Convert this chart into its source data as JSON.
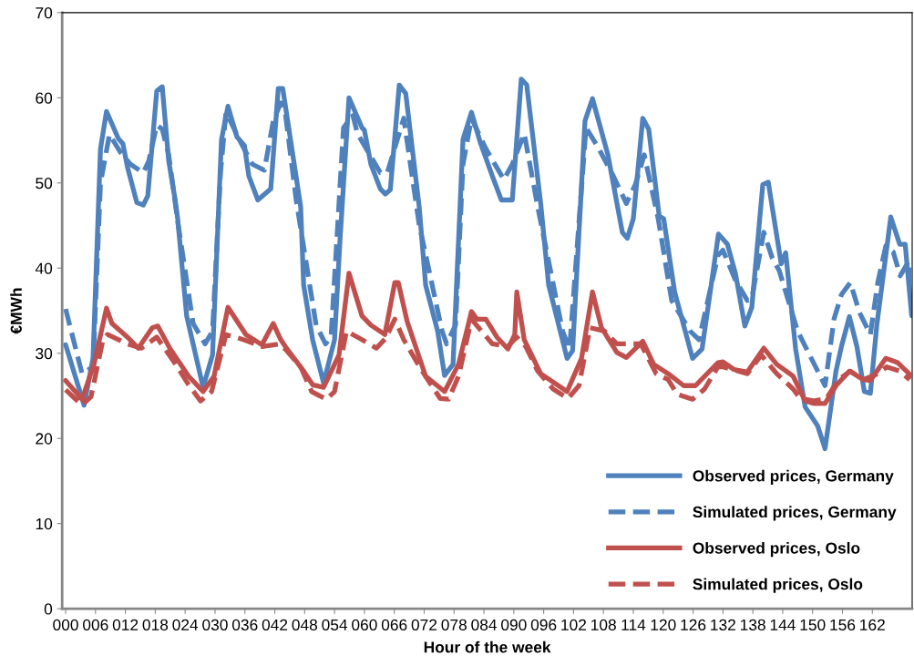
{
  "chart_data": {
    "type": "line",
    "xlabel": "Hour of the week",
    "ylabel": "€MWh",
    "xlim": [
      -0.7,
      170
    ],
    "ylim": [
      0,
      70
    ],
    "yticks": [
      0,
      10,
      20,
      30,
      40,
      50,
      60,
      70
    ],
    "xticks": [
      {
        "value": 0,
        "label": "000"
      },
      {
        "value": 6,
        "label": "006"
      },
      {
        "value": 12,
        "label": "012"
      },
      {
        "value": 18,
        "label": "018"
      },
      {
        "value": 24,
        "label": "024"
      },
      {
        "value": 30,
        "label": "030"
      },
      {
        "value": 36,
        "label": "036"
      },
      {
        "value": 42,
        "label": "042"
      },
      {
        "value": 48,
        "label": "048"
      },
      {
        "value": 54,
        "label": "054"
      },
      {
        "value": 60,
        "label": "060"
      },
      {
        "value": 66,
        "label": "066"
      },
      {
        "value": 72,
        "label": "072"
      },
      {
        "value": 78,
        "label": "078"
      },
      {
        "value": 84,
        "label": "084"
      },
      {
        "value": 90,
        "label": "090"
      },
      {
        "value": 96,
        "label": "096"
      },
      {
        "value": 102,
        "label": "102"
      },
      {
        "value": 108,
        "label": "108"
      },
      {
        "value": 114,
        "label": "114"
      },
      {
        "value": 120,
        "label": "120"
      },
      {
        "value": 126,
        "label": "126"
      },
      {
        "value": 132,
        "label": "132"
      },
      {
        "value": 138,
        "label": "138"
      },
      {
        "value": 144,
        "label": "144"
      },
      {
        "value": 150,
        "label": "150"
      },
      {
        "value": 156,
        "label": "156"
      },
      {
        "value": 162,
        "label": "162"
      }
    ],
    "grid": false,
    "legend": "bottom right",
    "marker": "none",
    "series": [
      {
        "name": "Observed prices, Germany",
        "color": "#4f81bd",
        "line_style": "solid",
        "x": [
          0,
          3.7,
          5.5,
          7,
          8.2,
          10.6,
          11.5,
          12.4,
          14.3,
          15.6,
          16.5,
          18.3,
          19.4,
          20.7,
          22,
          22.5,
          24.3,
          27.6,
          29.5,
          31.3,
          32.6,
          34.4,
          35.9,
          36.8,
          38.6,
          41.2,
          42.7,
          43.6,
          47.2,
          47.8,
          49.6,
          51.8,
          54,
          55.1,
          56.9,
          59.5,
          60,
          61.3,
          63.2,
          64.2,
          65.2,
          67,
          68.3,
          71,
          72.3,
          74.7,
          76.1,
          77.8,
          79.8,
          81.5,
          83.3,
          85.7,
          87.5,
          89.7,
          91.5,
          92.6,
          95.4,
          97,
          100.7,
          101.8,
          104.3,
          105.8,
          108.9,
          111.8,
          112.8,
          114,
          115.9,
          117.1,
          119.2,
          120.1,
          122.3,
          125.9,
          127.8,
          131.1,
          132.9,
          134.5,
          136.4,
          137.8,
          140,
          141.1,
          143.7,
          144.6,
          146.6,
          148.5,
          151,
          152.5,
          154.7,
          155.8,
          157.4,
          158.9,
          160.4,
          161.6,
          162.9,
          165.7,
          167.5,
          168.6,
          169.9
        ],
        "values": [
          31.0,
          23.9,
          29.4,
          54.0,
          58.4,
          55.2,
          54.6,
          51.9,
          47.7,
          47.4,
          48.5,
          60.8,
          61.3,
          52.6,
          48.0,
          45.8,
          34.4,
          26.0,
          29.8,
          55.1,
          59.0,
          55.4,
          54.4,
          50.8,
          48.0,
          49.3,
          61.1,
          61.1,
          47.2,
          38.0,
          31.6,
          26.5,
          31.6,
          43.3,
          60.0,
          56.5,
          56.2,
          52.2,
          49.3,
          48.7,
          49.2,
          61.5,
          60.5,
          47.2,
          38.0,
          32.6,
          27.4,
          28.7,
          55.1,
          58.3,
          54.7,
          50.8,
          48.0,
          48.0,
          62.2,
          61.5,
          47.6,
          38.0,
          29.4,
          30.3,
          57.3,
          59.9,
          53.3,
          44.2,
          43.5,
          45.8,
          57.6,
          56.3,
          46.1,
          45.8,
          37.2,
          29.4,
          30.5,
          44.0,
          42.8,
          39.4,
          33.2,
          35.4,
          49.8,
          50.1,
          40.5,
          41.8,
          30.5,
          23.7,
          21.5,
          18.8,
          27.9,
          30.8,
          34.3,
          30.8,
          25.5,
          25.3,
          33.3,
          46.0,
          42.8,
          42.8,
          34.4
        ]
      },
      {
        "name": "Simulated prices, Germany",
        "color": "#4f81bd",
        "line_style": "dashed",
        "x": [
          0,
          3.3,
          5.5,
          7,
          8.8,
          11,
          13,
          15.6,
          16.7,
          18.3,
          19.4,
          20.7,
          22.5,
          25.6,
          28,
          29.5,
          31.1,
          32.2,
          35.3,
          37.5,
          39.9,
          41.7,
          43.2,
          44.1,
          46.3,
          50.3,
          52.2,
          53.3,
          55.8,
          57.7,
          58.6,
          63.2,
          64.6,
          67.9,
          71,
          75.6,
          76.5,
          78.3,
          79.8,
          81.5,
          84.4,
          88,
          89.7,
          92.1,
          94.8,
          99.8,
          101.2,
          104.5,
          107.1,
          110,
          112.6,
          114.4,
          116.2,
          119,
          121.7,
          125.4,
          127.2,
          131,
          132,
          134.5,
          136.9,
          137.8,
          140.2,
          141.9,
          143.3,
          147,
          149.4,
          152.5,
          154.3,
          155.8,
          157.6,
          159.4,
          161.6,
          163.1,
          164.7,
          166.2,
          167.6,
          169.3,
          169.9
        ],
        "values": [
          35.2,
          27.6,
          28.4,
          50.0,
          55.7,
          53.6,
          52.2,
          51.2,
          52.6,
          56.8,
          56.3,
          53.3,
          45.5,
          33.5,
          31.1,
          32.6,
          51.2,
          58.3,
          54.6,
          52.2,
          51.5,
          57.3,
          59.4,
          58.3,
          48.0,
          33.3,
          31.1,
          31.9,
          56.5,
          57.9,
          55.8,
          51.2,
          51.2,
          57.6,
          45.1,
          32.6,
          31.1,
          33.3,
          52.2,
          57.6,
          54.0,
          50.4,
          52.2,
          55.8,
          47.2,
          32.6,
          30.5,
          56.5,
          54.0,
          50.8,
          47.6,
          49.8,
          53.3,
          45.8,
          36.2,
          32.6,
          31.6,
          41.5,
          42.1,
          38.6,
          36.2,
          36.5,
          44.2,
          41.2,
          39.7,
          32.6,
          29.8,
          26.2,
          34.0,
          36.9,
          38.3,
          34.8,
          32.2,
          38.3,
          42.6,
          41.9,
          39.1,
          40.8,
          37.2
        ]
      },
      {
        "name": "Observed prices, Oslo",
        "color": "#c0504d",
        "line_style": "solid",
        "x": [
          0,
          3.3,
          5.7,
          8.2,
          9.3,
          12.4,
          14.6,
          17.4,
          18.5,
          21,
          24.7,
          27.6,
          29.8,
          32.6,
          36.2,
          39.4,
          41.7,
          43.2,
          44.1,
          47.8,
          49.6,
          51.8,
          54.9,
          56.9,
          59.5,
          61.3,
          64.1,
          66.1,
          66.8,
          68.6,
          72.3,
          76.1,
          78.9,
          81.5,
          82.6,
          84.4,
          86.6,
          88.8,
          90.2,
          90.6,
          92.1,
          95.4,
          100.7,
          103.6,
          105.8,
          107.6,
          110.7,
          112.6,
          115.9,
          118.1,
          121,
          124.1,
          126.5,
          131,
          132,
          134.2,
          136.9,
          140.2,
          142.8,
          146.1,
          148.5,
          150.3,
          152.5,
          154.7,
          157.4,
          160.2,
          161.6,
          164.7,
          167.1,
          169.9
        ],
        "values": [
          26.8,
          24.6,
          28.7,
          35.3,
          33.5,
          31.9,
          30.6,
          33.0,
          33.2,
          30.5,
          27.3,
          25.5,
          27.3,
          35.4,
          32.2,
          31.0,
          33.5,
          31.6,
          30.8,
          27.9,
          26.3,
          26.0,
          29.8,
          39.4,
          34.4,
          33.3,
          32.2,
          38.3,
          38.3,
          33.7,
          27.3,
          25.5,
          28.7,
          34.9,
          34.0,
          34.0,
          31.9,
          30.5,
          32.2,
          37.2,
          31.6,
          27.6,
          25.5,
          29.4,
          37.2,
          33.0,
          30.1,
          29.5,
          31.4,
          28.7,
          27.6,
          26.2,
          26.2,
          28.9,
          29.0,
          28.1,
          27.8,
          30.6,
          28.7,
          27.3,
          24.4,
          24.1,
          24.1,
          26.2,
          27.9,
          26.9,
          26.8,
          29.4,
          28.9,
          27.3
        ]
      },
      {
        "name": "Simulated prices, Oslo",
        "color": "#c0504d",
        "line_style": "dashed",
        "x": [
          0,
          3.3,
          5.1,
          7.5,
          8.4,
          12.4,
          15.2,
          18.3,
          22.1,
          24.7,
          27.1,
          29.3,
          32.2,
          35.7,
          39.4,
          43,
          44.1,
          47.2,
          49.4,
          52.4,
          54,
          56.4,
          59.5,
          62.4,
          64.2,
          66.1,
          67.9,
          71.6,
          75.2,
          76.9,
          78.9,
          81.5,
          85.7,
          88.8,
          90.6,
          92.4,
          94.8,
          97.9,
          100.9,
          103.1,
          105.3,
          108.2,
          110.7,
          113.7,
          115.5,
          118.6,
          121,
          122.8,
          125.9,
          128.3,
          131,
          132,
          136.9,
          139.7,
          142.8,
          146.1,
          147.5,
          150.3,
          152.8,
          155.2,
          157.6,
          160.2,
          163.1,
          164.9,
          167.5,
          169.5
        ],
        "values": [
          25.7,
          23.9,
          24.9,
          31.6,
          32.2,
          31.1,
          30.6,
          31.9,
          28.7,
          26.3,
          24.4,
          25.5,
          32.2,
          31.6,
          30.8,
          31.1,
          30.5,
          28.4,
          25.5,
          24.6,
          25.5,
          32.6,
          31.6,
          30.6,
          31.7,
          34.0,
          31.6,
          27.9,
          24.7,
          24.6,
          27.3,
          34.0,
          31.1,
          30.8,
          31.9,
          30.8,
          27.9,
          25.8,
          24.7,
          26.2,
          33.0,
          32.6,
          31.1,
          31.1,
          31.1,
          27.6,
          26.9,
          25.2,
          24.6,
          25.8,
          28.4,
          28.4,
          27.6,
          29.8,
          27.6,
          25.8,
          24.7,
          24.4,
          24.7,
          26.9,
          27.9,
          26.9,
          27.6,
          28.4,
          27.9,
          26.9
        ]
      }
    ]
  }
}
